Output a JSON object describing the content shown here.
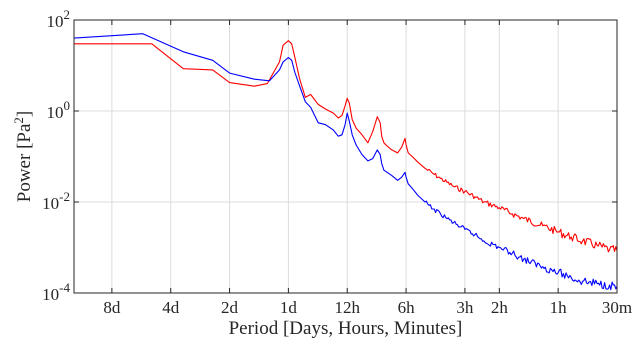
{
  "chart_data": {
    "type": "line",
    "title": "",
    "xlabel": "Period [Days, Hours, Minutes]",
    "ylabel": "Power [Pa",
    "ylabel_superscript": "2",
    "ylabel_suffix": "]",
    "x_axis": {
      "quantity": "frequency",
      "unit": "cycles per day",
      "scale": "log",
      "range": [
        0.08,
        48
      ],
      "tick_positions": [
        0.125,
        0.25,
        0.5,
        1,
        2,
        4,
        8,
        12,
        24,
        48
      ],
      "tick_labels": [
        "8d",
        "4d",
        "2d",
        "1d",
        "12h",
        "6h",
        "3h",
        "2h",
        "1h",
        "30m"
      ]
    },
    "y_axis": {
      "scale": "log",
      "range": [
        0.0001,
        100
      ],
      "tick_values": [
        0.0001,
        0.01,
        1,
        100
      ],
      "tick_labels": [
        {
          "base": "10",
          "exp": "-4"
        },
        {
          "base": "10",
          "exp": "-2"
        },
        {
          "base": "10",
          "exp": "0"
        },
        {
          "base": "10",
          "exp": "2"
        }
      ]
    },
    "grid": true,
    "legend": "none",
    "series": [
      {
        "color": "#ff0000",
        "x": [
          0.08,
          0.2,
          0.29,
          0.41,
          0.5,
          0.67,
          0.78,
          0.9,
          0.94,
          1.0,
          1.04,
          1.08,
          1.14,
          1.22,
          1.3,
          1.42,
          1.55,
          1.7,
          1.8,
          1.88,
          1.95,
          2.0,
          2.05,
          2.12,
          2.22,
          2.38,
          2.55,
          2.7,
          2.85,
          2.95,
          3.0,
          3.08,
          3.2,
          3.38,
          3.62,
          3.8,
          3.95,
          4.0,
          4.1,
          4.3,
          4.6,
          5,
          5.5,
          6,
          7,
          8,
          9,
          10,
          12,
          14,
          16,
          20,
          24,
          28,
          32,
          38,
          44,
          48
        ],
        "y": [
          30,
          30,
          8.5,
          8,
          4.2,
          3.5,
          4.0,
          12,
          28,
          35,
          30,
          15,
          5.2,
          2.0,
          2.3,
          1.4,
          1.1,
          0.9,
          0.7,
          0.8,
          1.3,
          1.9,
          1.5,
          0.65,
          0.42,
          0.3,
          0.2,
          0.35,
          0.75,
          0.55,
          0.28,
          0.2,
          0.17,
          0.14,
          0.12,
          0.16,
          0.25,
          0.18,
          0.12,
          0.1,
          0.075,
          0.055,
          0.042,
          0.033,
          0.022,
          0.017,
          0.013,
          0.01,
          0.0075,
          0.0055,
          0.0043,
          0.003,
          0.0022,
          0.0017,
          0.0014,
          0.0011,
          0.0009,
          0.00085
        ]
      },
      {
        "color": "#0000ff",
        "x": [
          0.08,
          0.18,
          0.29,
          0.41,
          0.5,
          0.67,
          0.8,
          0.9,
          0.94,
          1.0,
          1.04,
          1.08,
          1.14,
          1.22,
          1.3,
          1.42,
          1.55,
          1.7,
          1.8,
          1.88,
          1.95,
          2.0,
          2.05,
          2.12,
          2.22,
          2.38,
          2.55,
          2.7,
          2.85,
          2.95,
          3.0,
          3.08,
          3.2,
          3.38,
          3.62,
          3.8,
          3.95,
          4.0,
          4.1,
          4.3,
          4.6,
          5,
          5.5,
          6,
          7,
          8,
          9,
          10,
          12,
          14,
          16,
          20,
          24,
          28,
          32,
          38,
          44,
          48
        ],
        "y": [
          40,
          50,
          20,
          13,
          6.8,
          5.0,
          4.6,
          8,
          12,
          15,
          13,
          7,
          3.6,
          1.6,
          1.2,
          0.55,
          0.5,
          0.38,
          0.28,
          0.3,
          0.5,
          0.9,
          0.6,
          0.3,
          0.18,
          0.11,
          0.08,
          0.09,
          0.14,
          0.11,
          0.07,
          0.05,
          0.045,
          0.038,
          0.03,
          0.035,
          0.045,
          0.035,
          0.025,
          0.02,
          0.014,
          0.01,
          0.007,
          0.0055,
          0.0035,
          0.0025,
          0.0019,
          0.0014,
          0.001,
          0.00075,
          0.00055,
          0.00038,
          0.00028,
          0.00022,
          0.00018,
          0.00016,
          0.00015,
          0.00014
        ]
      }
    ]
  }
}
